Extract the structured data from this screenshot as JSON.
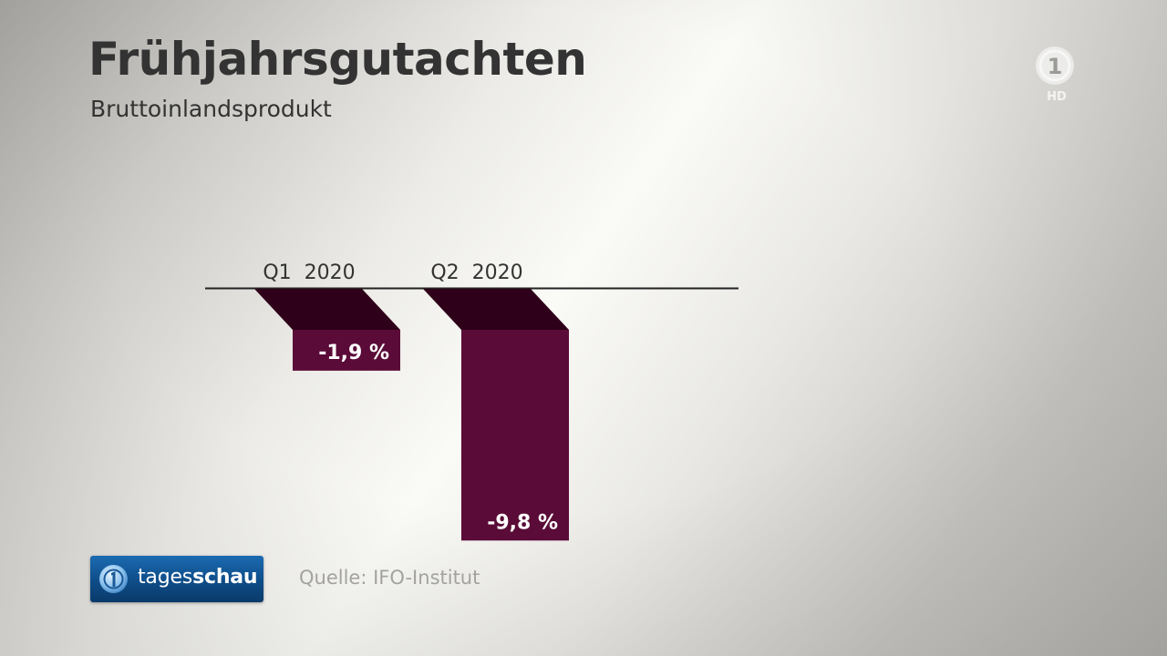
{
  "header": {
    "title": "Frühjahrsgutachten",
    "subtitle": "Bruttoinlandsprodukt"
  },
  "logo": {
    "channel_text": "1",
    "quality_text": "HD"
  },
  "brand": {
    "prefix": "tages",
    "suffix": "schau"
  },
  "source": "Quelle: IFO-Institut",
  "colors": {
    "bar_front": "#5a0b37",
    "bar_top": "#2f0019",
    "text_dark": "#333333",
    "badge_blue": "#0f4f8c"
  },
  "chart_data": {
    "type": "bar",
    "title": "Bruttoinlandsprodukt",
    "categories": [
      "Q1  2020",
      "Q2  2020"
    ],
    "values": [
      -1.9,
      -9.8
    ],
    "value_labels": [
      "-1,9 %",
      "-9,8 %"
    ],
    "unit": "%",
    "ylim": [
      -10.2,
      0
    ],
    "grid": false,
    "legend": "none"
  }
}
